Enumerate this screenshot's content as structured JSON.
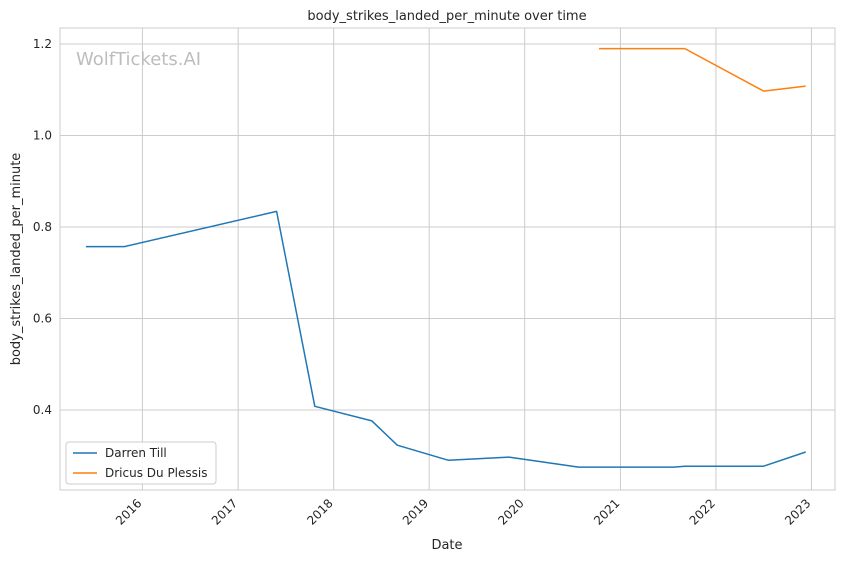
{
  "chart_data": {
    "type": "line",
    "title": "body_strikes_landed_per_minute over time",
    "xlabel": "Date",
    "ylabel": "body_strikes_landed_per_minute",
    "watermark": "WolfTickets.AI",
    "x_axis_type": "date",
    "xlim": [
      "2015-02-20",
      "2023-04-01"
    ],
    "ylim": [
      0.225,
      1.235
    ],
    "x_ticks": [
      "2016",
      "2017",
      "2018",
      "2019",
      "2020",
      "2021",
      "2022",
      "2023"
    ],
    "x_tick_dates": [
      "2016-01-01",
      "2017-01-01",
      "2018-01-01",
      "2019-01-01",
      "2020-01-01",
      "2021-01-01",
      "2022-01-01",
      "2023-01-01"
    ],
    "y_ticks": [
      0.4,
      0.6,
      0.8,
      1.0,
      1.2
    ],
    "y_tick_labels": [
      "0.4",
      "0.6",
      "0.8",
      "1.0",
      "1.2"
    ],
    "grid": true,
    "legend_position": "bottom-left",
    "series": [
      {
        "name": "Darren Till",
        "color": "#1f77b4",
        "points": [
          {
            "x": "2015-05-30",
            "y": 0.757
          },
          {
            "x": "2015-10-24",
            "y": 0.757
          },
          {
            "x": "2017-05-28",
            "y": 0.834
          },
          {
            "x": "2017-10-21",
            "y": 0.408
          },
          {
            "x": "2018-05-27",
            "y": 0.376
          },
          {
            "x": "2018-09-01",
            "y": 0.323
          },
          {
            "x": "2019-03-16",
            "y": 0.29
          },
          {
            "x": "2019-11-02",
            "y": 0.297
          },
          {
            "x": "2020-07-25",
            "y": 0.275
          },
          {
            "x": "2021-07-24",
            "y": 0.275
          },
          {
            "x": "2021-09-04",
            "y": 0.277
          },
          {
            "x": "2022-07-02",
            "y": 0.277
          },
          {
            "x": "2022-12-10",
            "y": 0.308
          }
        ]
      },
      {
        "name": "Dricus Du Plessis",
        "color": "#ff7f0e",
        "points": [
          {
            "x": "2020-10-11",
            "y": 1.19
          },
          {
            "x": "2021-07-10",
            "y": 1.19
          },
          {
            "x": "2021-09-04",
            "y": 1.19
          },
          {
            "x": "2022-07-02",
            "y": 1.097
          },
          {
            "x": "2022-12-10",
            "y": 1.108
          }
        ]
      }
    ]
  }
}
